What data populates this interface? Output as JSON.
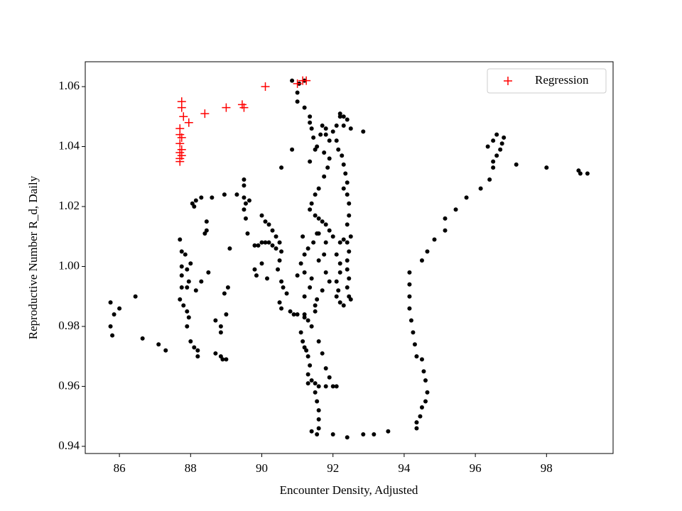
{
  "chart_data": {
    "type": "scatter",
    "xlabel": "Encounter Density, Adjusted",
    "ylabel": "Reproductive Number R_d, Daily",
    "xlim": [
      85.04,
      99.87
    ],
    "ylim": [
      0.9376,
      1.0683
    ],
    "xticks": [
      86,
      88,
      90,
      92,
      94,
      96,
      98
    ],
    "yticks": [
      0.94,
      0.96,
      0.98,
      {
        "value": 1,
        "label": "1.00"
      },
      1.02,
      1.04,
      1.06
    ],
    "legend": "upper right",
    "series": [
      {
        "color": "#000000",
        "marker": "circle",
        "x": [
          85.75,
          85.75,
          85.8,
          85.85,
          86.0,
          86.45,
          86.65,
          87.1,
          87.3,
          87.7,
          87.75,
          87.75,
          87.75,
          87.75,
          87.7,
          87.8,
          87.9,
          87.95,
          87.9,
          87.9,
          88.0,
          87.85,
          87.95,
          87.9,
          88.0,
          88.1,
          88.2,
          88.2,
          88.15,
          88.3,
          88.5,
          88.7,
          88.85,
          88.85,
          88.7,
          88.85,
          88.9,
          89.0,
          88.95,
          89.05,
          89.0,
          88.1,
          88.05,
          88.15,
          88.3,
          88.45,
          88.45,
          88.4,
          88.6,
          88.95,
          89.1,
          89.3,
          89.5,
          89.55,
          89.5,
          89.5,
          89.65,
          89.5,
          89.55,
          89.6,
          89.8,
          89.9,
          90.0,
          90.1,
          90.2,
          90.3,
          90.4,
          90.0,
          90.1,
          90.2,
          90.3,
          90.4,
          90.5,
          90.55,
          90.5,
          89.8,
          89.85,
          90.0,
          90.15,
          90.45,
          90.55,
          90.6,
          90.7,
          90.5,
          90.55,
          90.8,
          90.9,
          91.0,
          91.2,
          91.2,
          91.3,
          91.1,
          91.15,
          91.2,
          91.25,
          91.3,
          91.35,
          91.3,
          91.3,
          91.4,
          91.5,
          91.6,
          91.8,
          92.0,
          92.1,
          91.5,
          91.5,
          91.55,
          91.4,
          91.6,
          91.7,
          91.8,
          91.9,
          91.5,
          91.55,
          91.6,
          91.6,
          91.6,
          91.55,
          91.4,
          92.0,
          92.4,
          92.85,
          93.15,
          93.55,
          94.15,
          94.15,
          94.15,
          94.15,
          94.2,
          94.25,
          94.3,
          94.35,
          94.5,
          94.55,
          94.6,
          94.65,
          94.6,
          94.5,
          94.45,
          94.35,
          94.35,
          94.5,
          94.65,
          94.85,
          95.15,
          95.15,
          95.45,
          95.75,
          96.15,
          96.4,
          96.5,
          96.5,
          96.6,
          96.35,
          96.5,
          96.6,
          96.7,
          96.75,
          96.8,
          97.15,
          98.0,
          98.9,
          98.95,
          99.15,
          90.85,
          91.05,
          91.2,
          91.0,
          91.0,
          91.2,
          91.35,
          91.35,
          91.4,
          91.45,
          91.55,
          91.35,
          91.5,
          91.65,
          91.7,
          91.8,
          91.8,
          91.9,
          92.0,
          92.1,
          92.2,
          92.2,
          92.3,
          92.4,
          92.3,
          92.5,
          92.85,
          92.1,
          92.15,
          92.25,
          92.3,
          92.35,
          92.4,
          92.3,
          92.4,
          92.45,
          92.45,
          92.4,
          92.5,
          92.4,
          92.45,
          92.4,
          92.4,
          92.45,
          92.4,
          92.45,
          92.5,
          92.3,
          92.2,
          92.15,
          92.1,
          92.2,
          92.2,
          92.1,
          92.2,
          92.3,
          92.0,
          91.9,
          91.8,
          91.7,
          91.6,
          91.5,
          91.35,
          91.4,
          91.5,
          91.6,
          91.75,
          91.85,
          91.9,
          91.75,
          91.55,
          91.45,
          91.3,
          91.2,
          91.1,
          91.2,
          91.4,
          91.35,
          91.2,
          91.6,
          91.8,
          91.75,
          91.6,
          91.8,
          91.9,
          91.7,
          92.1,
          91.15,
          91.0,
          90.55,
          90.85
        ],
        "values": [
          0.988,
          0.98,
          0.977,
          0.984,
          0.986,
          0.99,
          0.976,
          0.974,
          0.972,
          1.009,
          1.005,
          1.0,
          0.997,
          0.993,
          0.989,
          0.987,
          0.985,
          0.983,
          0.999,
          0.993,
          1.001,
          1.004,
          0.995,
          0.98,
          0.975,
          0.973,
          0.97,
          0.972,
          0.992,
          0.995,
          0.998,
          0.982,
          0.98,
          0.978,
          0.971,
          0.97,
          0.969,
          0.969,
          0.991,
          0.993,
          0.984,
          1.02,
          1.021,
          1.022,
          1.023,
          1.015,
          1.012,
          1.011,
          1.023,
          1.024,
          1.006,
          1.024,
          1.023,
          1.021,
          1.029,
          1.027,
          1.022,
          1.019,
          1.016,
          1.011,
          1.007,
          1.007,
          1.008,
          1.008,
          1.008,
          1.007,
          1.006,
          1.017,
          1.015,
          1.014,
          1.012,
          1.01,
          1.008,
          1.005,
          1.002,
          0.999,
          0.997,
          1.001,
          0.996,
          0.999,
          0.995,
          0.993,
          0.991,
          0.988,
          0.986,
          0.985,
          0.984,
          0.984,
          0.984,
          0.983,
          0.982,
          0.978,
          0.975,
          0.973,
          0.972,
          0.97,
          0.967,
          0.964,
          0.961,
          0.962,
          0.961,
          0.96,
          0.96,
          0.96,
          0.96,
          0.985,
          0.987,
          0.989,
          0.98,
          0.975,
          0.971,
          0.966,
          0.963,
          0.958,
          0.955,
          0.952,
          0.949,
          0.946,
          0.944,
          0.945,
          0.944,
          0.943,
          0.944,
          0.944,
          0.945,
          0.998,
          0.994,
          0.99,
          0.986,
          0.982,
          0.978,
          0.974,
          0.97,
          0.969,
          0.965,
          0.962,
          0.958,
          0.955,
          0.953,
          0.95,
          0.948,
          0.946,
          1.002,
          1.005,
          1.009,
          1.012,
          1.016,
          1.019,
          1.023,
          1.026,
          1.029,
          1.033,
          1.035,
          1.037,
          1.04,
          1.042,
          1.044,
          1.039,
          1.041,
          1.043,
          1.034,
          1.033,
          1.032,
          1.031,
          1.031,
          1.062,
          1.061,
          1.062,
          1.058,
          1.055,
          1.053,
          1.05,
          1.048,
          1.046,
          1.043,
          1.04,
          1.035,
          1.039,
          1.044,
          1.047,
          1.046,
          1.044,
          1.042,
          1.045,
          1.047,
          1.05,
          1.051,
          1.05,
          1.049,
          1.047,
          1.046,
          1.045,
          1.042,
          1.039,
          1.037,
          1.034,
          1.031,
          1.028,
          1.026,
          1.024,
          1.021,
          1.017,
          1.014,
          1.01,
          1.008,
          1.005,
          1.002,
          0.999,
          0.996,
          0.993,
          0.99,
          0.989,
          0.987,
          0.988,
          0.992,
          0.995,
          0.998,
          1.001,
          1.004,
          1.008,
          1.009,
          1.01,
          1.012,
          1.014,
          1.015,
          1.016,
          1.017,
          1.019,
          1.021,
          1.024,
          1.026,
          1.03,
          1.033,
          1.036,
          1.038,
          1.011,
          1.008,
          1.006,
          1.004,
          1.001,
          0.998,
          0.996,
          0.993,
          0.99,
          1.011,
          1.008,
          1.004,
          1.002,
          0.998,
          0.995,
          0.992,
          0.99,
          1.01,
          0.997,
          1.033,
          1.039
        ]
      },
      {
        "name": "Regression",
        "color": "#ff0000",
        "marker": "plus",
        "x": [
          87.75,
          87.75,
          87.8,
          87.95,
          87.7,
          87.7,
          87.75,
          87.7,
          87.75,
          87.7,
          87.75,
          87.7,
          87.7,
          88.4,
          89.0,
          89.45,
          89.5,
          90.1,
          91.0,
          91.15,
          91.25
        ],
        "values": [
          1.055,
          1.053,
          1.05,
          1.048,
          1.046,
          1.044,
          1.043,
          1.041,
          1.039,
          1.038,
          1.037,
          1.036,
          1.035,
          1.051,
          1.053,
          1.054,
          1.053,
          1.06,
          1.061,
          1.062,
          1.062
        ]
      }
    ]
  }
}
